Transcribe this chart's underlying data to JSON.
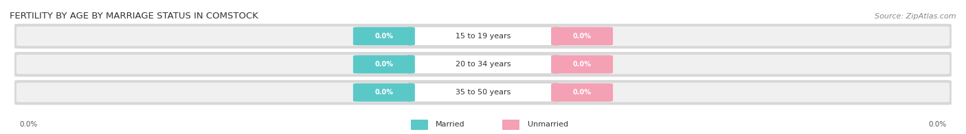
{
  "title": "FERTILITY BY AGE BY MARRIAGE STATUS IN COMSTOCK",
  "source": "Source: ZipAtlas.com",
  "categories": [
    "15 to 19 years",
    "20 to 34 years",
    "35 to 50 years"
  ],
  "married_values": [
    0.0,
    0.0,
    0.0
  ],
  "unmarried_values": [
    0.0,
    0.0,
    0.0
  ],
  "married_color": "#5bc8c8",
  "unmarried_color": "#f4a0b5",
  "row_bg_color": "#e8e8e8",
  "row_inner_color": "#f5f5f5",
  "title_fontsize": 9.5,
  "source_fontsize": 8,
  "axis_label_left": "0.0%",
  "axis_label_right": "0.0%",
  "background_color": "#ffffff",
  "title_color": "#333333",
  "source_color": "#888888",
  "axis_color": "#555555"
}
